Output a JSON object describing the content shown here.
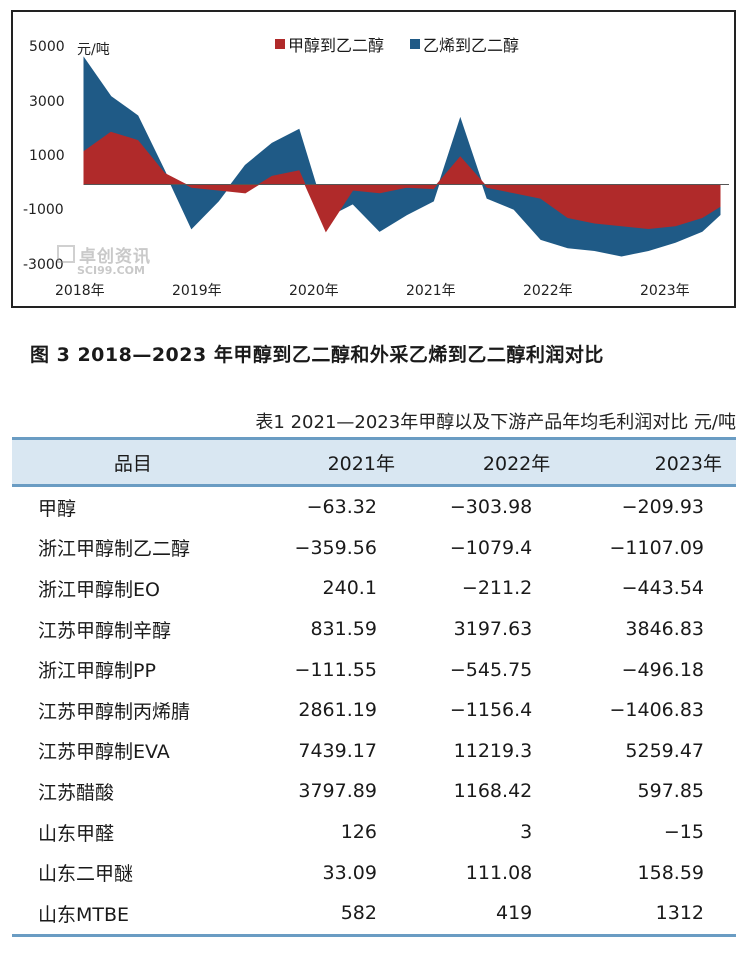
{
  "chart_data": {
    "type": "area",
    "unit_label": "元/吨",
    "series": [
      {
        "name": "甲醇到乙二醇",
        "color": "#b02a2a",
        "x": [
          "2018-01",
          "2018-04",
          "2018-07",
          "2018-10",
          "2019-01",
          "2019-04",
          "2019-07",
          "2019-10",
          "2020-01",
          "2020-04",
          "2020-07",
          "2020-10",
          "2021-01",
          "2021-04",
          "2021-07",
          "2021-10",
          "2022-01",
          "2022-04",
          "2022-07",
          "2022-10",
          "2023-01",
          "2023-04",
          "2023-07",
          "2023-10",
          "2023-12"
        ],
        "values": [
          1200,
          1900,
          1600,
          400,
          -100,
          -200,
          -300,
          300,
          500,
          -1700,
          -200,
          -300,
          -100,
          -150,
          1000,
          -100,
          -300,
          -500,
          -1200,
          -1400,
          -1500,
          -1600,
          -1500,
          -1200,
          -800
        ]
      },
      {
        "name": "乙烯到乙二醇",
        "color": "#1f5a86",
        "x": [
          "2018-01",
          "2018-04",
          "2018-07",
          "2018-10",
          "2019-01",
          "2019-04",
          "2019-07",
          "2019-10",
          "2020-01",
          "2020-04",
          "2020-07",
          "2020-10",
          "2021-01",
          "2021-04",
          "2021-07",
          "2021-10",
          "2022-01",
          "2022-04",
          "2022-07",
          "2022-10",
          "2023-01",
          "2023-04",
          "2023-07",
          "2023-10",
          "2023-12"
        ],
        "values": [
          4600,
          3200,
          2500,
          500,
          -1600,
          -600,
          700,
          1500,
          2000,
          -1200,
          -700,
          -1700,
          -1100,
          -600,
          2400,
          -500,
          -900,
          -2000,
          -2300,
          -2400,
          -2600,
          -2400,
          -2100,
          -1700,
          -1100
        ]
      }
    ],
    "y_ticks": [
      "5000",
      "3000",
      "1000",
      "-1000",
      "-3000"
    ],
    "y_tick_values": [
      5000,
      3000,
      1000,
      -1000,
      -3000
    ],
    "x_ticks": [
      "2018年",
      "2019年",
      "2020年",
      "2021年",
      "2022年",
      "2023年"
    ],
    "ylim": [
      -3000,
      5000
    ]
  },
  "watermark": {
    "cn": "卓创资讯",
    "en": "SCI99.COM"
  },
  "figure_caption": "图 3  2018—2023 年甲醇到乙二醇和外采乙烯到乙二醇利润对比",
  "table": {
    "title": "表1 2021—2023年甲醇以及下游产品年均毛利润对比   元/吨",
    "headers": [
      "品目",
      "2021年",
      "2022年",
      "2023年"
    ],
    "rows": [
      [
        "甲醇",
        "−63.32",
        "−303.98",
        "−209.93"
      ],
      [
        "浙江甲醇制乙二醇",
        "−359.56",
        "−1079.4",
        "−1107.09"
      ],
      [
        "浙江甲醇制EO",
        "240.1",
        "−211.2",
        "−443.54"
      ],
      [
        "江苏甲醇制辛醇",
        "831.59",
        "3197.63",
        "3846.83"
      ],
      [
        "浙江甲醇制PP",
        "−111.55",
        "−545.75",
        "−496.18"
      ],
      [
        "江苏甲醇制丙烯腈",
        "2861.19",
        "−1156.4",
        "−1406.83"
      ],
      [
        "江苏甲醇制EVA",
        "7439.17",
        "11219.3",
        "5259.47"
      ],
      [
        "江苏醋酸",
        "3797.89",
        "1168.42",
        "597.85"
      ],
      [
        "山东甲醛",
        "126",
        "3",
        "−15"
      ],
      [
        "山东二甲醚",
        "33.09",
        "111.08",
        "158.59"
      ],
      [
        "山东MTBE",
        "582",
        "419",
        "1312"
      ]
    ]
  }
}
